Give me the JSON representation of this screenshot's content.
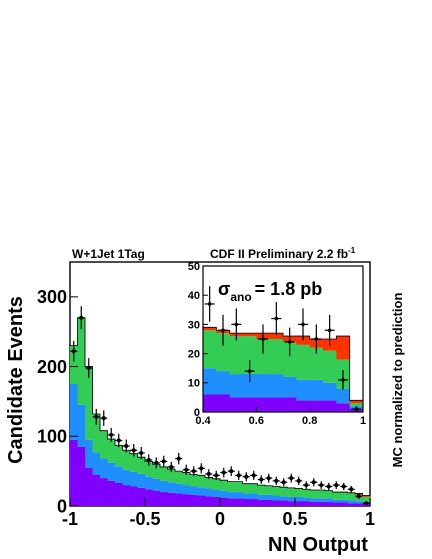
{
  "figure": {
    "top_label_left": "W+1Jet 1Tag",
    "top_label_right": "CDF II Preliminary 2.2 fb",
    "top_label_right_sup": "-1",
    "right_label": "MC normalized to prediction"
  },
  "chart_data": [
    {
      "type": "area",
      "title": "",
      "xlabel": "NN Output",
      "ylabel": "Candidate Events",
      "xlim": [
        -1,
        1
      ],
      "ylim": [
        0,
        350
      ],
      "x_ticks": [
        -1,
        -0.5,
        0,
        0.5,
        1
      ],
      "x_tick_labels": [
        "-1",
        "-0.5",
        "0",
        "0.5",
        "1"
      ],
      "y_ticks": [
        0,
        100,
        200,
        300
      ],
      "y_tick_labels": [
        "0",
        "100",
        "200",
        "300"
      ],
      "grid": false,
      "bin_edges": [
        -1,
        -0.95,
        -0.9,
        -0.85,
        -0.8,
        -0.75,
        -0.7,
        -0.65,
        -0.6,
        -0.55,
        -0.5,
        -0.45,
        -0.4,
        -0.35,
        -0.3,
        -0.25,
        -0.2,
        -0.15,
        -0.1,
        -0.05,
        0,
        0.05,
        0.1,
        0.15,
        0.2,
        0.25,
        0.3,
        0.35,
        0.4,
        0.45,
        0.5,
        0.55,
        0.6,
        0.65,
        0.7,
        0.75,
        0.8,
        0.85,
        0.9,
        0.95,
        1
      ],
      "series": [
        {
          "color": "#8000ff",
          "values": [
            95,
            85,
            55,
            45,
            40,
            36,
            33,
            30,
            28,
            26,
            24,
            22,
            20,
            19,
            18,
            17,
            16,
            15,
            14,
            13,
            12,
            11,
            11,
            10,
            10,
            9,
            9,
            8,
            8,
            7,
            7,
            7,
            6,
            6,
            6,
            5,
            5,
            4,
            4,
            3
          ]
        },
        {
          "color": "#1f8fff",
          "values": [
            80,
            60,
            40,
            32,
            28,
            26,
            24,
            22,
            21,
            20,
            18,
            17,
            16,
            15,
            14,
            13,
            12,
            12,
            11,
            10,
            10,
            9,
            9,
            8,
            8,
            7,
            7,
            7,
            6,
            6,
            6,
            5,
            5,
            5,
            5,
            4,
            4,
            4,
            3,
            3
          ]
        },
        {
          "color": "#33cc55",
          "values": [
            55,
            125,
            105,
            55,
            40,
            34,
            30,
            28,
            26,
            24,
            22,
            21,
            20,
            19,
            18,
            18,
            17,
            17,
            16,
            16,
            15,
            15,
            15,
            14,
            14,
            14,
            13,
            13,
            13,
            13,
            12,
            12,
            12,
            12,
            11,
            11,
            11,
            10,
            9,
            7
          ]
        },
        {
          "color": "#ff3300",
          "values": [
            0,
            0,
            0,
            0,
            0,
            0,
            0,
            0,
            0,
            0,
            0,
            0,
            0,
            0,
            0,
            0,
            0,
            0,
            0,
            0,
            0,
            0,
            0,
            0,
            0,
            0,
            0,
            0,
            0,
            0,
            0,
            0,
            0,
            0,
            0,
            0,
            0,
            1,
            2,
            2
          ]
        }
      ],
      "points": [
        {
          "x": -0.975,
          "y": 222
        },
        {
          "x": -0.925,
          "y": 270
        },
        {
          "x": -0.875,
          "y": 198
        },
        {
          "x": -0.825,
          "y": 128
        },
        {
          "x": -0.775,
          "y": 126
        },
        {
          "x": -0.725,
          "y": 102
        },
        {
          "x": -0.675,
          "y": 94
        },
        {
          "x": -0.625,
          "y": 86
        },
        {
          "x": -0.575,
          "y": 80
        },
        {
          "x": -0.525,
          "y": 76
        },
        {
          "x": -0.475,
          "y": 66
        },
        {
          "x": -0.425,
          "y": 62
        },
        {
          "x": -0.375,
          "y": 64
        },
        {
          "x": -0.325,
          "y": 56
        },
        {
          "x": -0.275,
          "y": 68
        },
        {
          "x": -0.225,
          "y": 52
        },
        {
          "x": -0.175,
          "y": 50
        },
        {
          "x": -0.125,
          "y": 54
        },
        {
          "x": -0.075,
          "y": 46
        },
        {
          "x": -0.025,
          "y": 44
        },
        {
          "x": 0.025,
          "y": 48
        },
        {
          "x": 0.075,
          "y": 50
        },
        {
          "x": 0.125,
          "y": 44
        },
        {
          "x": 0.175,
          "y": 42
        },
        {
          "x": 0.225,
          "y": 44
        },
        {
          "x": 0.275,
          "y": 38
        },
        {
          "x": 0.325,
          "y": 40
        },
        {
          "x": 0.375,
          "y": 36
        },
        {
          "x": 0.425,
          "y": 34
        },
        {
          "x": 0.475,
          "y": 40
        },
        {
          "x": 0.525,
          "y": 36
        },
        {
          "x": 0.575,
          "y": 30
        },
        {
          "x": 0.625,
          "y": 34
        },
        {
          "x": 0.675,
          "y": 30
        },
        {
          "x": 0.725,
          "y": 28
        },
        {
          "x": 0.775,
          "y": 30
        },
        {
          "x": 0.825,
          "y": 28
        },
        {
          "x": 0.875,
          "y": 24
        },
        {
          "x": 0.925,
          "y": 14
        },
        {
          "x": 0.975,
          "y": 4
        }
      ]
    },
    {
      "type": "area",
      "title": "",
      "xlim": [
        0.4,
        1
      ],
      "ylim": [
        0,
        50
      ],
      "x_ticks": [
        0.4,
        0.6,
        0.8,
        1
      ],
      "x_tick_labels": [
        "0.4",
        "0.6",
        "0.8",
        "1"
      ],
      "y_ticks": [
        0,
        10,
        20,
        30,
        40,
        50
      ],
      "y_tick_labels": [
        "0",
        "10",
        "20",
        "30",
        "40",
        "50"
      ],
      "annotation": "σ",
      "annotation_sub": "ano",
      "annotation_value": "= 1.8 pb",
      "bin_edges": [
        0.4,
        0.45,
        0.5,
        0.55,
        0.6,
        0.65,
        0.7,
        0.75,
        0.8,
        0.85,
        0.9,
        0.95,
        1
      ],
      "series": [
        {
          "color": "#8000ff",
          "values": [
            6,
            6,
            5,
            5,
            5,
            5,
            5,
            4,
            4,
            4,
            3,
            1
          ]
        },
        {
          "color": "#1f8fff",
          "values": [
            9,
            8,
            8,
            8,
            8,
            8,
            7,
            7,
            7,
            6,
            5,
            1
          ]
        },
        {
          "color": "#33cc55",
          "values": [
            13,
            13,
            13,
            13,
            12,
            12,
            12,
            12,
            11,
            11,
            10,
            1
          ]
        },
        {
          "color": "#ff3300",
          "values": [
            1,
            1,
            1,
            1,
            2,
            2,
            2,
            3,
            3,
            4,
            8,
            1
          ]
        }
      ],
      "points": [
        {
          "x": 0.425,
          "y": 37
        },
        {
          "x": 0.475,
          "y": 28
        },
        {
          "x": 0.525,
          "y": 30
        },
        {
          "x": 0.575,
          "y": 14
        },
        {
          "x": 0.625,
          "y": 25
        },
        {
          "x": 0.675,
          "y": 32
        },
        {
          "x": 0.725,
          "y": 24
        },
        {
          "x": 0.775,
          "y": 30
        },
        {
          "x": 0.825,
          "y": 25
        },
        {
          "x": 0.875,
          "y": 28
        },
        {
          "x": 0.925,
          "y": 11
        },
        {
          "x": 0.975,
          "y": 1
        }
      ]
    }
  ]
}
